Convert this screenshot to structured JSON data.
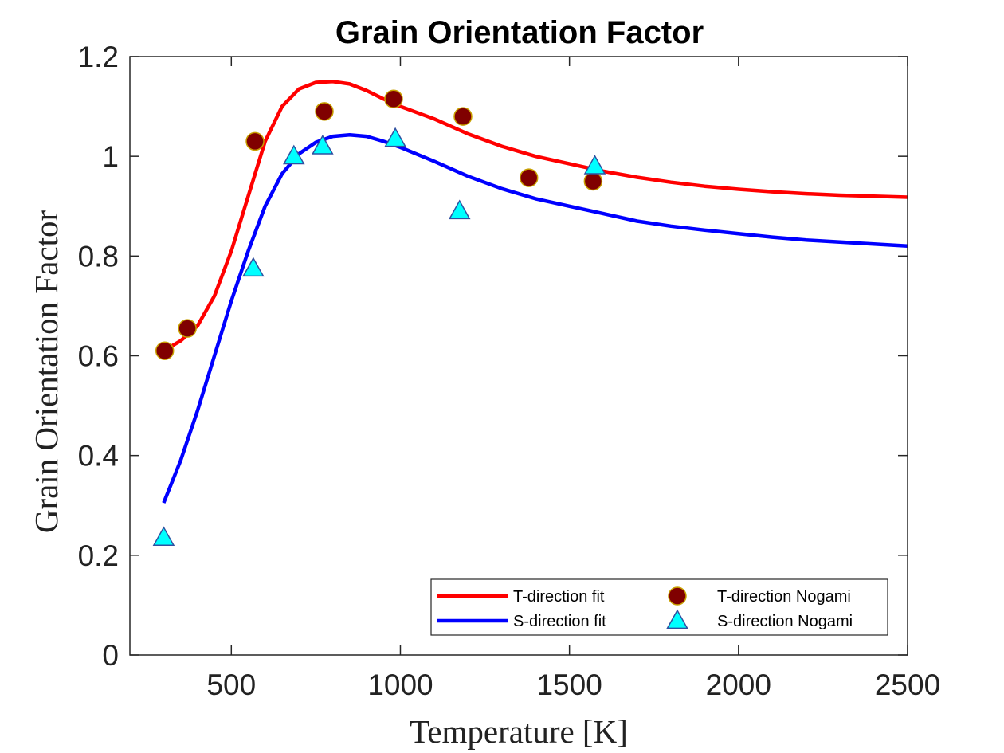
{
  "chart_data": {
    "type": "line",
    "title": "Grain Orientation Factor",
    "xlabel": "Temperature [K]",
    "ylabel": "Grain Orientation Factor",
    "xlim": [
      200,
      2500
    ],
    "ylim": [
      0,
      1.2
    ],
    "xticks": [
      500,
      1000,
      1500,
      2000,
      2500
    ],
    "yticks": [
      0,
      0.2,
      0.4,
      0.6,
      0.8,
      1,
      1.2
    ],
    "xtick_labels": [
      "500",
      "1000",
      "1500",
      "2000",
      "2500"
    ],
    "ytick_labels": [
      "0",
      "0.2",
      "0.4",
      "0.6",
      "0.8",
      "1",
      "1.2"
    ],
    "grid": false,
    "legend_position": "bottom-right",
    "series": [
      {
        "name": "T-direction fit",
        "kind": "line",
        "color": "#ff0000",
        "x": [
          300,
          350,
          400,
          450,
          500,
          550,
          600,
          650,
          700,
          750,
          800,
          850,
          900,
          950,
          1000,
          1100,
          1200,
          1300,
          1400,
          1500,
          1600,
          1700,
          1800,
          1900,
          2000,
          2100,
          2200,
          2300,
          2400,
          2500
        ],
        "y": [
          0.61,
          0.63,
          0.66,
          0.72,
          0.81,
          0.92,
          1.03,
          1.1,
          1.135,
          1.148,
          1.15,
          1.145,
          1.132,
          1.115,
          1.1,
          1.075,
          1.045,
          1.02,
          1.0,
          0.985,
          0.97,
          0.958,
          0.948,
          0.94,
          0.934,
          0.929,
          0.925,
          0.922,
          0.92,
          0.918
        ]
      },
      {
        "name": "S-direction fit",
        "kind": "line",
        "color": "#0000ff",
        "x": [
          300,
          350,
          400,
          450,
          500,
          550,
          600,
          650,
          700,
          750,
          800,
          850,
          900,
          950,
          1000,
          1100,
          1200,
          1300,
          1400,
          1500,
          1600,
          1700,
          1800,
          1900,
          2000,
          2100,
          2200,
          2300,
          2400,
          2500
        ],
        "y": [
          0.305,
          0.39,
          0.49,
          0.6,
          0.71,
          0.81,
          0.9,
          0.965,
          1.005,
          1.028,
          1.04,
          1.043,
          1.04,
          1.03,
          1.018,
          0.99,
          0.96,
          0.935,
          0.915,
          0.9,
          0.885,
          0.87,
          0.86,
          0.852,
          0.845,
          0.838,
          0.832,
          0.828,
          0.824,
          0.82
        ]
      },
      {
        "name": "T-direction Nogami",
        "kind": "scatter",
        "marker": "circle",
        "color": "#800000",
        "edge": "#c8a000",
        "x": [
          303,
          370,
          570,
          775,
          980,
          1185,
          1380,
          1570
        ],
        "y": [
          0.61,
          0.655,
          1.03,
          1.09,
          1.115,
          1.08,
          0.957,
          0.95
        ]
      },
      {
        "name": "S-direction Nogami",
        "kind": "scatter",
        "marker": "triangle",
        "color": "#00ffff",
        "edge": "#3050a0",
        "x": [
          300,
          565,
          685,
          770,
          985,
          1175,
          1575
        ],
        "y": [
          0.235,
          0.775,
          1.0,
          1.02,
          1.035,
          0.89,
          0.98
        ]
      }
    ]
  }
}
